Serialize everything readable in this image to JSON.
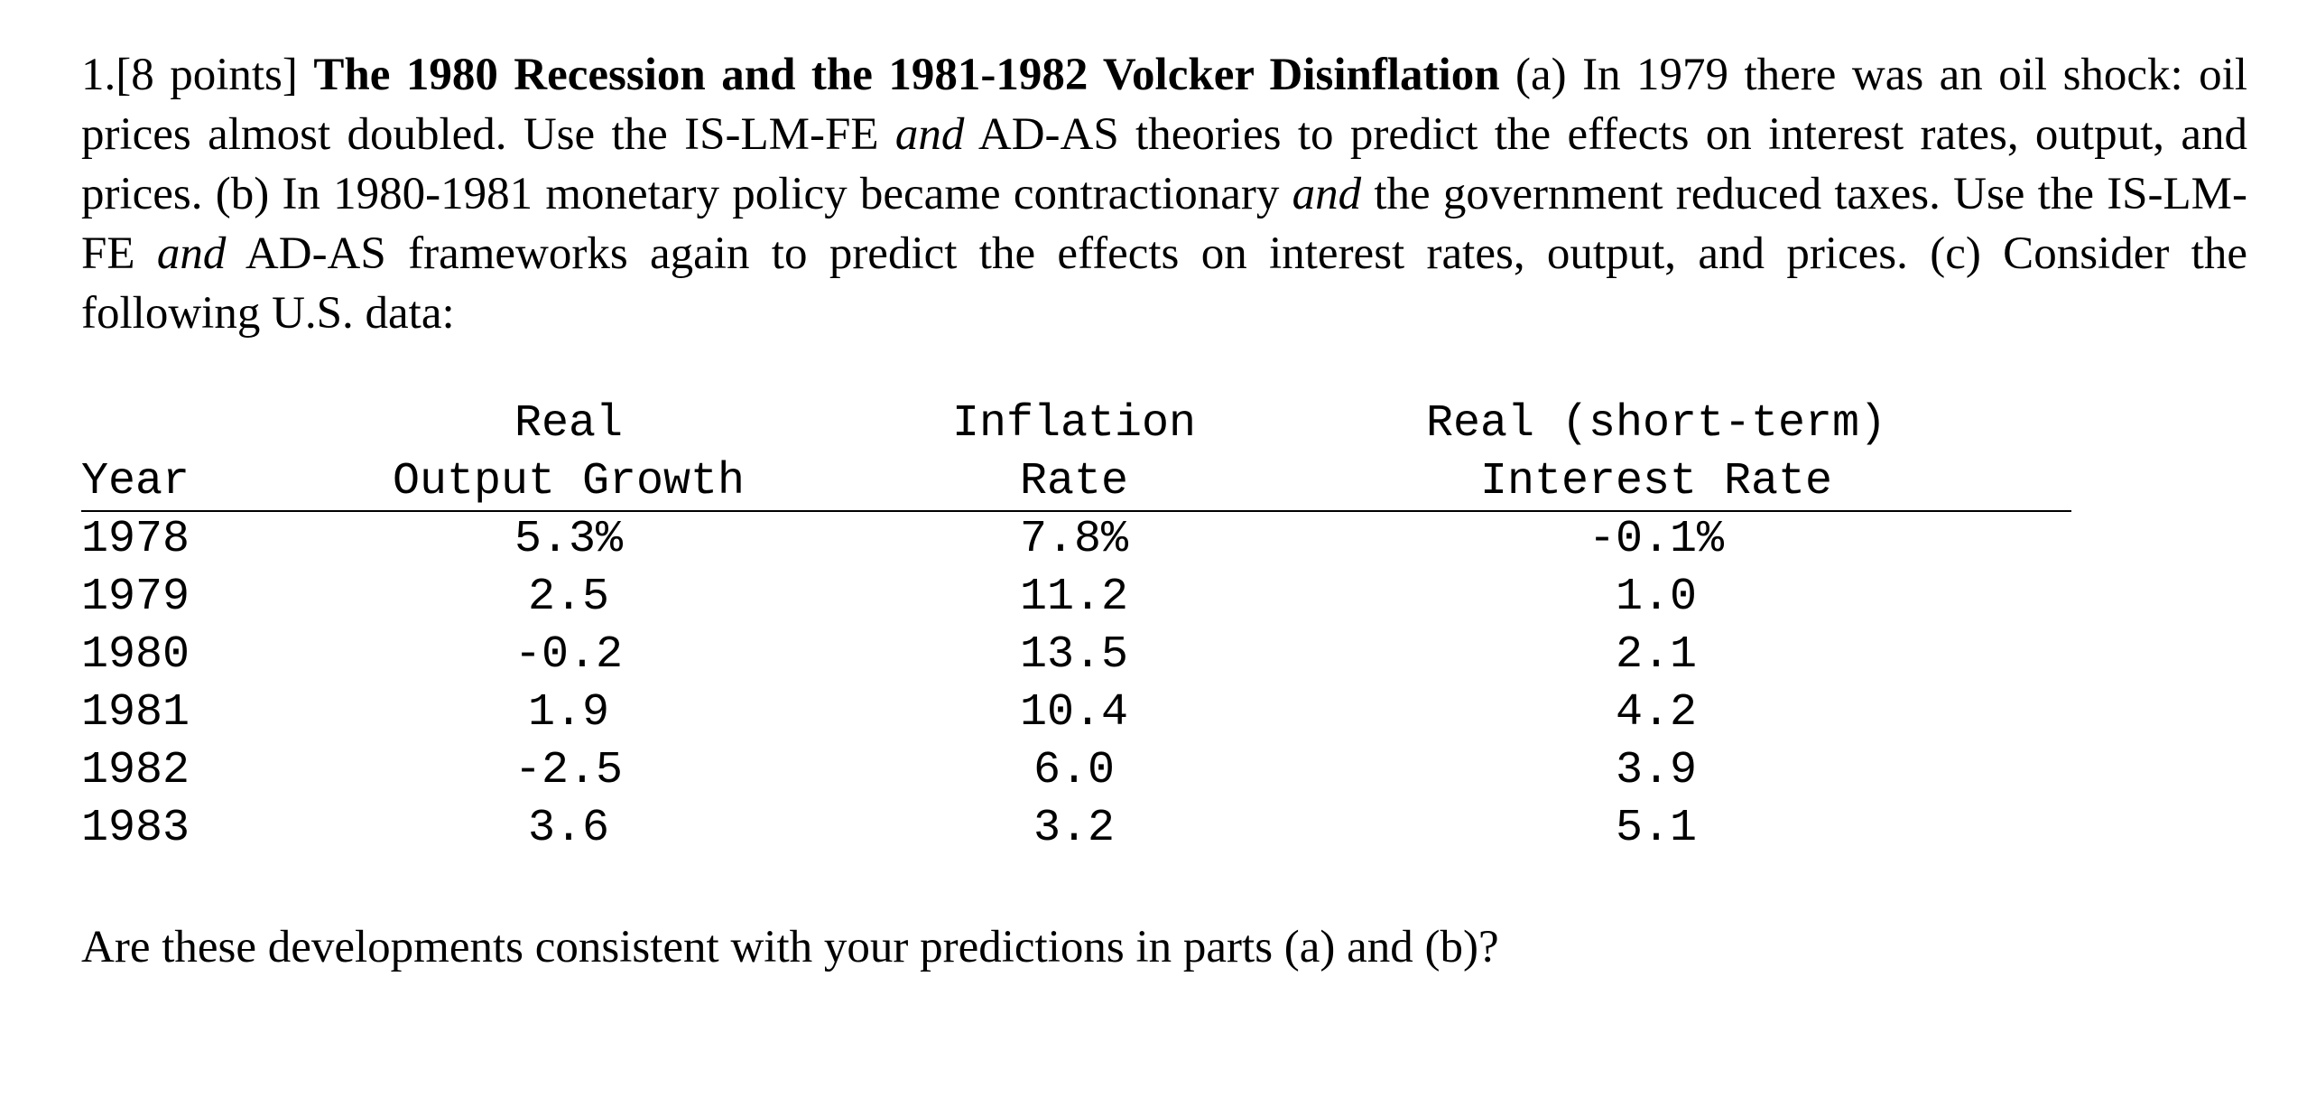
{
  "problem": {
    "number": "1.",
    "points": "[8 points]",
    "title": "The 1980 Recession and the 1981-1982 Volcker Disinflation",
    "part_a_1": "(a) In 1979 there was an oil shock: oil prices almost doubled. Use the IS-LM-FE ",
    "part_a_and": "and",
    "part_a_2": " AD-AS theories to predict the effects on interest rates, output, and prices. (b) In 1980-1981 monetary policy became contractionary ",
    "part_b_and1": "and",
    "part_b_1": " the government reduced taxes. Use the IS-LM-FE ",
    "part_b_and2": "and",
    "part_b_2": " AD-AS frameworks again to predict the effects on interest rates, output, and prices. (c) Consider the following U.S. data:"
  },
  "table": {
    "headers": {
      "year": "Year",
      "growth_line1": "Real",
      "growth_line2": "Output Growth",
      "inflation_line1": "Inflation",
      "inflation_line2": "Rate",
      "interest_line1": "Real (short-term)",
      "interest_line2": "Interest Rate"
    },
    "rows": [
      {
        "year": "1978",
        "growth": "5.3%",
        "inflation": "7.8%",
        "interest": "-0.1%"
      },
      {
        "year": "1979",
        "growth": "2.5",
        "inflation": "11.2",
        "interest": "1.0"
      },
      {
        "year": "1980",
        "growth": "-0.2",
        "inflation": "13.5",
        "interest": "2.1"
      },
      {
        "year": "1981",
        "growth": "1.9",
        "inflation": "10.4",
        "interest": "4.2"
      },
      {
        "year": "1982",
        "growth": "-2.5",
        "inflation": "6.0",
        "interest": "3.9"
      },
      {
        "year": "1983",
        "growth": "3.6",
        "inflation": "3.2",
        "interest": "5.1"
      }
    ]
  },
  "question": "Are these developments consistent with your predictions in parts (a) and (b)?"
}
